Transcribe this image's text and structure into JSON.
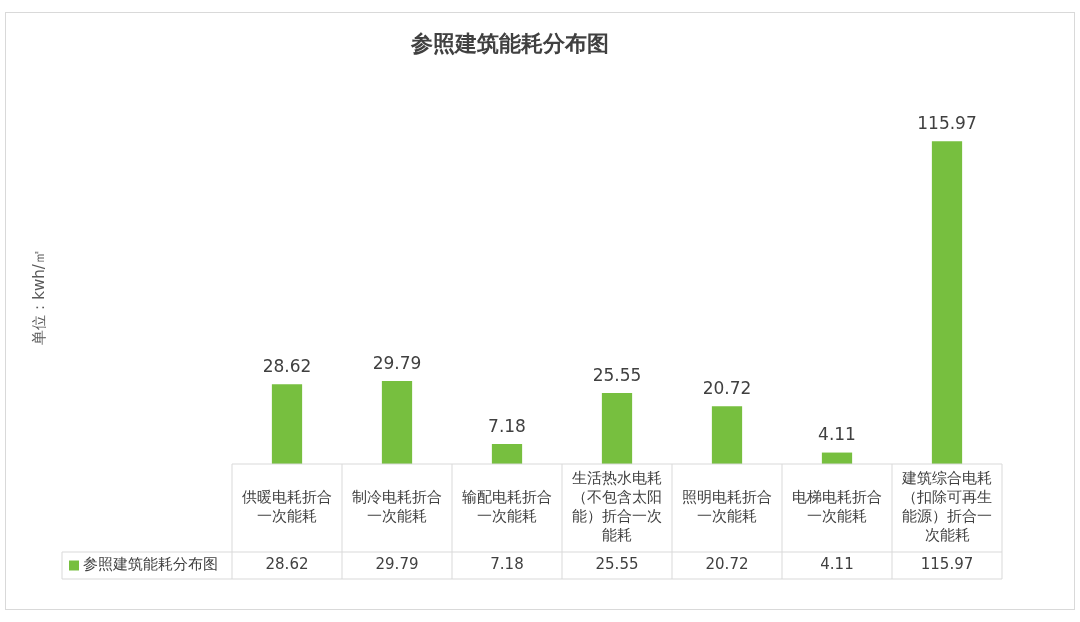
{
  "chart_data": {
    "type": "bar",
    "title": "参照建筑能耗分布图",
    "annotations": [
      "单位：kwh/㎡",
      {
        "text": "28.62",
        "x": "供暖电耗折合一次能耗",
        "y": 28.62
      },
      {
        "text": "29.79",
        "x": "制冷电耗折合一次能耗",
        "y": 29.79
      },
      {
        "text": "7.18",
        "x": "输配电耗折合一次能耗",
        "y": 7.18
      },
      {
        "text": "25.55",
        "x": "生活热水电耗（不包含太阳能）折合一次能耗",
        "y": 25.55
      },
      {
        "text": "20.72",
        "x": "照明电耗折合一次能耗",
        "y": 20.72
      },
      {
        "text": "4.11",
        "x": "电梯电耗折合一次能耗",
        "y": 4.11
      },
      {
        "text": "115.97",
        "x": "建筑综合电耗（扣除可再生能源）折合一次能耗",
        "y": 115.97
      }
    ],
    "categories": [
      "供暖电耗折合一次能耗",
      "制冷电耗折合一次能耗",
      "输配电耗折合一次能耗",
      "生活热水电耗（不包含太阳能）折合一次能耗",
      "照明电耗折合一次能耗",
      "电梯电耗折合一次能耗",
      "建筑综合电耗（扣除可再生能源）折合一次能耗"
    ],
    "series": [
      {
        "name": "参照建筑能耗分布图",
        "color": "#77bf3f",
        "values": [
          28.62,
          29.79,
          7.18,
          25.55,
          20.72,
          4.11,
          115.97
        ]
      }
    ],
    "data_labels": true,
    "legend": "bottom",
    "grid": false
  }
}
